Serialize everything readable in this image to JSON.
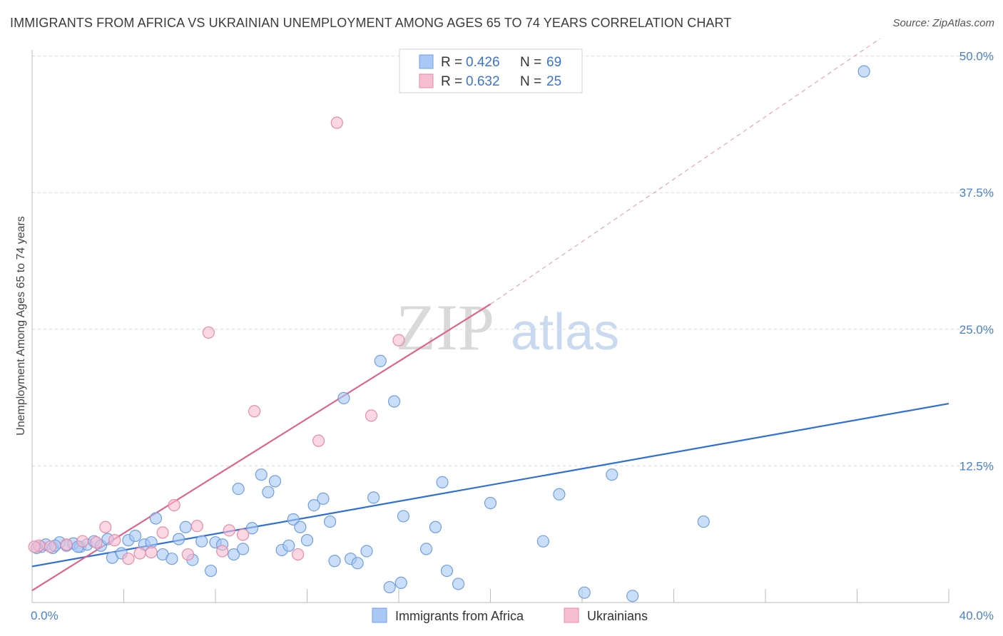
{
  "title": "IMMIGRANTS FROM AFRICA VS UKRAINIAN UNEMPLOYMENT AMONG AGES 65 TO 74 YEARS CORRELATION CHART",
  "source": "Source: ZipAtlas.com",
  "watermark": {
    "zip": "ZIP",
    "atlas": "atlas"
  },
  "colors": {
    "blue_fill": "#a9c8f5",
    "blue_stroke": "#6f9fe0",
    "blue_line": "#2d6fd4",
    "pink_fill": "#f7bdd0",
    "pink_stroke": "#e88aa8",
    "pink_line": "#e0628b",
    "grid": "#d9d9d9",
    "tick_text": "#4a7fd1"
  },
  "legend": {
    "blue": {
      "r_label": "R = ",
      "r_value": "0.426",
      "n_label": "N = ",
      "n_value": "69"
    },
    "pink": {
      "r_label": "R = ",
      "r_value": "0.632",
      "n_label": "N = ",
      "n_value": "25"
    }
  },
  "chart_data": {
    "type": "scatter",
    "title": "IMMIGRANTS FROM AFRICA VS UKRAINIAN UNEMPLOYMENT AMONG AGES 65 TO 74 YEARS CORRELATION CHART",
    "xlabel": "",
    "ylabel": "Unemployment Among Ages 65 to 74 years",
    "xlim": [
      0,
      40
    ],
    "ylim": [
      0,
      52
    ],
    "x_tick_labels": [
      {
        "value": 0,
        "label": "0.0%"
      },
      {
        "value": 40,
        "label": "40.0%"
      }
    ],
    "y_tick_labels": [
      {
        "value": 12.5,
        "label": "12.5%"
      },
      {
        "value": 25,
        "label": "25.0%"
      },
      {
        "value": 37.5,
        "label": "37.5%"
      },
      {
        "value": 50,
        "label": "50.0%"
      }
    ],
    "x_minor_ticks": [
      4,
      8,
      12,
      16,
      20,
      24,
      28,
      32,
      36,
      40
    ],
    "series": [
      {
        "name": "Immigrants from Africa",
        "color": "blue",
        "points": [
          [
            0.4,
            5.1
          ],
          [
            0.6,
            5.3
          ],
          [
            0.9,
            5.0
          ],
          [
            1.2,
            5.5
          ],
          [
            1.5,
            5.2
          ],
          [
            1.8,
            5.4
          ],
          [
            2.1,
            5.1
          ],
          [
            2.4,
            5.3
          ],
          [
            2.7,
            5.6
          ],
          [
            3.0,
            5.2
          ],
          [
            3.3,
            5.8
          ],
          [
            3.5,
            4.1
          ],
          [
            3.9,
            4.5
          ],
          [
            4.2,
            5.7
          ],
          [
            4.5,
            6.1
          ],
          [
            4.9,
            5.3
          ],
          [
            5.2,
            5.5
          ],
          [
            5.4,
            7.7
          ],
          [
            5.7,
            4.4
          ],
          [
            6.1,
            4.0
          ],
          [
            6.4,
            5.8
          ],
          [
            6.7,
            6.9
          ],
          [
            7.0,
            3.9
          ],
          [
            7.4,
            5.6
          ],
          [
            7.8,
            2.9
          ],
          [
            8.0,
            5.5
          ],
          [
            8.3,
            5.3
          ],
          [
            8.8,
            4.4
          ],
          [
            9.0,
            10.4
          ],
          [
            9.2,
            4.9
          ],
          [
            9.6,
            6.8
          ],
          [
            10.0,
            11.7
          ],
          [
            10.3,
            10.1
          ],
          [
            10.6,
            11.1
          ],
          [
            10.9,
            4.8
          ],
          [
            11.2,
            5.2
          ],
          [
            11.4,
            7.6
          ],
          [
            11.7,
            6.9
          ],
          [
            12.0,
            5.7
          ],
          [
            12.3,
            8.9
          ],
          [
            12.7,
            9.5
          ],
          [
            13.0,
            7.4
          ],
          [
            13.2,
            3.8
          ],
          [
            13.6,
            18.7
          ],
          [
            13.9,
            4.0
          ],
          [
            14.2,
            3.6
          ],
          [
            14.6,
            4.7
          ],
          [
            14.9,
            9.6
          ],
          [
            15.2,
            22.1
          ],
          [
            15.6,
            1.4
          ],
          [
            15.8,
            18.4
          ],
          [
            16.1,
            1.8
          ],
          [
            16.2,
            7.9
          ],
          [
            17.2,
            4.9
          ],
          [
            17.6,
            6.9
          ],
          [
            17.9,
            11.0
          ],
          [
            18.1,
            2.9
          ],
          [
            18.6,
            1.7
          ],
          [
            20.0,
            9.1
          ],
          [
            22.3,
            5.6
          ],
          [
            23.0,
            9.9
          ],
          [
            24.1,
            0.9
          ],
          [
            25.3,
            11.7
          ],
          [
            26.2,
            0.6
          ],
          [
            29.3,
            7.4
          ],
          [
            36.3,
            48.6
          ],
          [
            0.2,
            5.0
          ],
          [
            1.0,
            5.2
          ],
          [
            2.0,
            5.1
          ]
        ]
      },
      {
        "name": "Ukrainians",
        "color": "pink",
        "points": [
          [
            0.3,
            5.2
          ],
          [
            0.8,
            5.1
          ],
          [
            1.5,
            5.3
          ],
          [
            2.2,
            5.6
          ],
          [
            2.8,
            5.5
          ],
          [
            3.2,
            6.9
          ],
          [
            3.6,
            5.7
          ],
          [
            4.2,
            4.0
          ],
          [
            4.7,
            4.5
          ],
          [
            5.2,
            4.6
          ],
          [
            5.7,
            6.4
          ],
          [
            6.2,
            8.9
          ],
          [
            6.8,
            4.4
          ],
          [
            7.2,
            7.0
          ],
          [
            7.7,
            24.7
          ],
          [
            8.3,
            4.7
          ],
          [
            8.6,
            6.6
          ],
          [
            9.2,
            6.2
          ],
          [
            9.7,
            17.5
          ],
          [
            11.6,
            4.4
          ],
          [
            12.5,
            14.8
          ],
          [
            13.3,
            43.9
          ],
          [
            14.8,
            17.1
          ],
          [
            16.0,
            24.0
          ],
          [
            0.1,
            5.1
          ]
        ]
      }
    ],
    "trendlines": [
      {
        "series": "Immigrants from Africa",
        "x": [
          0,
          40
        ],
        "y": [
          3.3,
          18.2
        ],
        "style": "solid"
      },
      {
        "series": "Ukrainians",
        "x": [
          0,
          20
        ],
        "y": [
          1.1,
          27.3
        ],
        "style": "solid"
      },
      {
        "series": "Ukrainians",
        "x": [
          20,
          37
        ],
        "y": [
          27.3,
          51.6
        ],
        "style": "dashed"
      }
    ]
  },
  "bottom_legend": [
    "Immigrants from Africa",
    "Ukrainians"
  ]
}
